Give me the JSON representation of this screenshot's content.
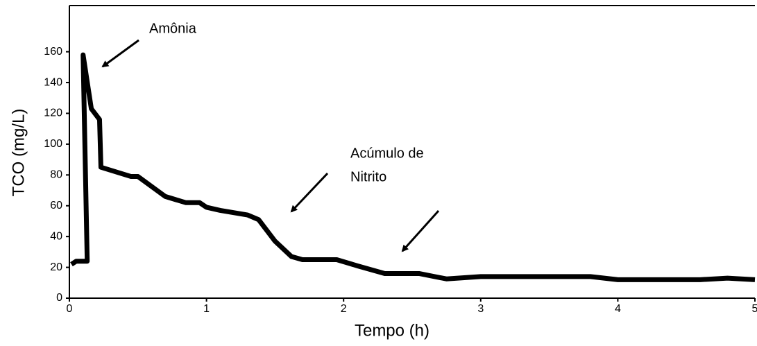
{
  "chart_data": {
    "type": "line",
    "x_label": "Tempo (h)",
    "y_label": "TCO (mg/L)",
    "annotations": [
      "Amônia",
      "Acúmulo de",
      "Nitrito"
    ],
    "x": [
      0.015,
      0.05,
      0.13,
      0.1,
      0.16,
      0.22,
      0.23,
      0.45,
      0.5,
      0.7,
      0.85,
      0.95,
      1.0,
      1.1,
      1.3,
      1.38,
      1.5,
      1.62,
      1.7,
      1.95,
      2.1,
      2.3,
      2.55,
      2.75,
      3.0,
      3.4,
      3.8,
      4.0,
      4.6,
      4.8,
      5.0
    ],
    "series": [
      {
        "name": "TCO",
        "color": "#000000",
        "values": [
          22,
          24,
          24,
          158,
          123,
          116,
          85,
          79,
          79,
          66,
          62,
          62,
          59,
          57,
          54,
          51,
          37,
          27,
          25,
          25,
          21,
          16,
          16,
          12.5,
          14,
          14,
          14,
          12,
          12,
          13,
          12
        ]
      }
    ],
    "xlim": [
      0,
      5
    ],
    "xticks": [
      0,
      1,
      2,
      3,
      4,
      5
    ],
    "ylim": [
      0,
      190
    ],
    "yticks": [
      0,
      20,
      40,
      60,
      80,
      100,
      120,
      140,
      160
    ]
  }
}
